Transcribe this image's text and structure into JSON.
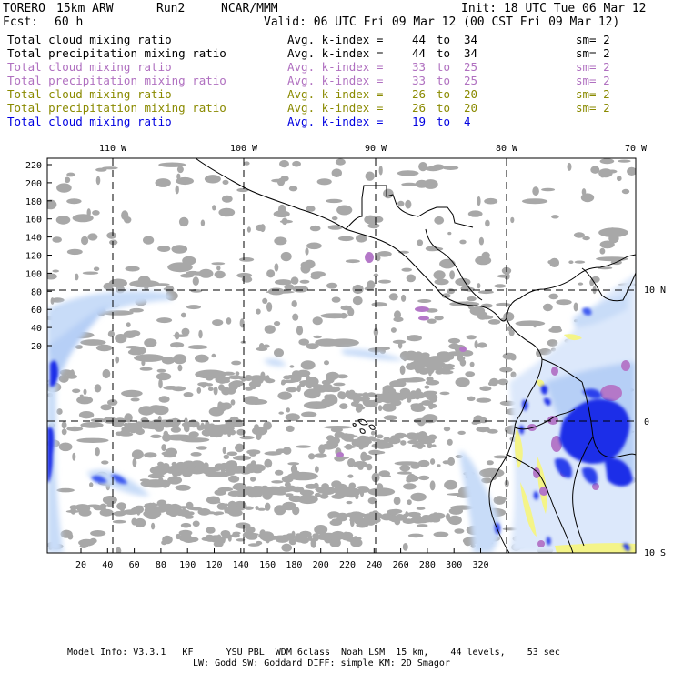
{
  "header": {
    "model": "TORERO",
    "resolution": "15km ARW",
    "run": "Run2",
    "org": "NCAR/MMM",
    "init": "Init: 18 UTC Tue 06 Mar 12",
    "fcst_label": "Fcst:",
    "fcst_value": "60 h",
    "valid": "Valid: 06 UTC Fri 09 Mar 12 (00 CST Fri 09 Mar 12)"
  },
  "legend": [
    {
      "field": "Total cloud mixing ratio",
      "index": "Avg. k-index =",
      "from": "44",
      "to_word": "to",
      "to": "34",
      "sm": "sm= 2",
      "color": "#000000"
    },
    {
      "field": "Total precipitation mixing ratio",
      "index": "Avg. k-index =",
      "from": "44",
      "to_word": "to",
      "to": "34",
      "sm": "sm= 2",
      "color": "#000000"
    },
    {
      "field": "Total cloud mixing ratio",
      "index": "Avg. k-index =",
      "from": "33",
      "to_word": "to",
      "to": "25",
      "sm": "sm= 2",
      "color": "#b070c0"
    },
    {
      "field": "Total precipitation mixing ratio",
      "index": "Avg. k-index =",
      "from": "33",
      "to_word": "to",
      "to": "25",
      "sm": "sm= 2",
      "color": "#b070c0"
    },
    {
      "field": "Total cloud mixing ratio",
      "index": "Avg. k-index =",
      "from": "26",
      "to_word": "to",
      "to": "20",
      "sm": "sm= 2",
      "color": "#8a8a00"
    },
    {
      "field": "Total precipitation mixing ratio",
      "index": "Avg. k-index =",
      "from": "26",
      "to_word": "to",
      "to": "20",
      "sm": "sm= 2",
      "color": "#8a8a00"
    },
    {
      "field": "Total cloud mixing ratio",
      "index": "Avg. k-index =",
      "from": "19",
      "to_word": "to",
      "to": "4",
      "sm": "",
      "color": "#0000e0"
    }
  ],
  "map": {
    "lon_labels": [
      "110 W",
      "100 W",
      "90 W",
      "80 W",
      "70 W"
    ],
    "lat_labels": [
      "10 N",
      "0",
      "10 S"
    ],
    "y_ticks": [
      "220",
      "200",
      "180",
      "160",
      "140",
      "120",
      "100",
      "80",
      "60",
      "40",
      "20"
    ],
    "x_ticks": [
      "20",
      "40",
      "60",
      "80",
      "100",
      "120",
      "140",
      "160",
      "180",
      "200",
      "220",
      "240",
      "260",
      "280",
      "300",
      "320"
    ],
    "colors": {
      "gray_cloud": "#a8a8a8",
      "light_blue": "#c8dcf8",
      "blue": "#1c2ee8",
      "purple": "#b478c8",
      "yellow": "#f4f488"
    }
  },
  "footer": {
    "line1": "Model Info: V3.3.1   KF      YSU PBL  WDM 6class  Noah LSM  15 km,    44 levels,    53 sec",
    "line2": "LW: Godd SW: Goddard DIFF: simple KM: 2D Smagor"
  }
}
